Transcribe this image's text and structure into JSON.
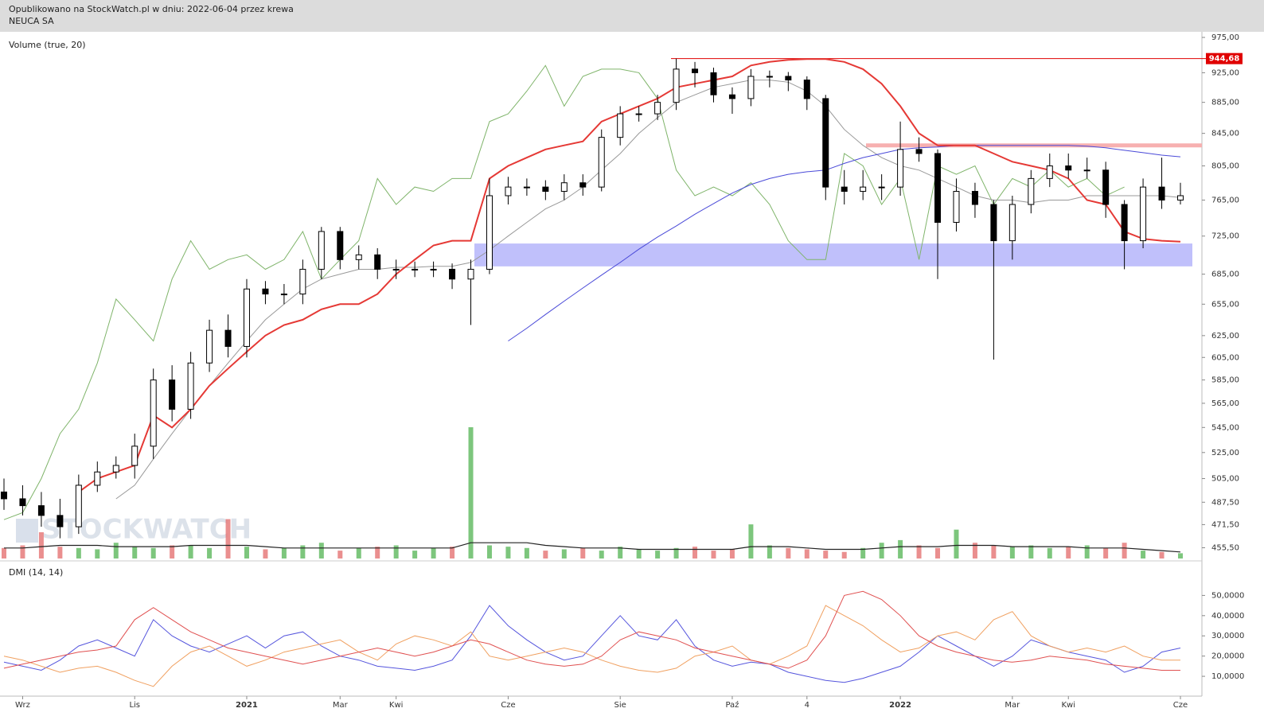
{
  "chart_data": {
    "type": "candlestick",
    "subtitle": "Opublikowano na StockWatch.pl w dniu: 2022-06-04 przez krewa",
    "title": "NEUCA SA",
    "volume_label": "Volume (true, 20)",
    "dmi_label": "DMI (14, 14)",
    "watermark": "STOCKWATCH",
    "log_scale": true,
    "categories": [
      null,
      "Wrz",
      null,
      null,
      null,
      null,
      null,
      "Lis",
      null,
      null,
      null,
      null,
      null,
      "2021",
      null,
      null,
      null,
      null,
      "Mar",
      null,
      null,
      "Kwi",
      null,
      null,
      null,
      null,
      null,
      "Cze",
      null,
      null,
      null,
      null,
      null,
      "Sie",
      null,
      null,
      null,
      null,
      null,
      "Paź",
      null,
      null,
      null,
      "4",
      null,
      null,
      null,
      null,
      "2022",
      null,
      null,
      null,
      null,
      null,
      "Mar",
      null,
      null,
      "Kwi",
      null,
      null,
      null,
      null,
      null,
      "Cze"
    ],
    "open": [
      495,
      490,
      485,
      478,
      470,
      500,
      510,
      515,
      530,
      585,
      560,
      600,
      630,
      615,
      670,
      665,
      665,
      690,
      730,
      700,
      705,
      690,
      690,
      690,
      690,
      680,
      690,
      770,
      780,
      780,
      775,
      785,
      780,
      840,
      870,
      870,
      885,
      930,
      925,
      895,
      890,
      920,
      920,
      915,
      890,
      780,
      775,
      780,
      780,
      825,
      820,
      740,
      775,
      760,
      720,
      760,
      790,
      805,
      800,
      800,
      760,
      720,
      780,
      765
    ],
    "high": [
      505,
      500,
      495,
      490,
      508,
      518,
      522,
      540,
      595,
      598,
      610,
      640,
      645,
      680,
      678,
      675,
      700,
      735,
      735,
      715,
      712,
      700,
      698,
      698,
      696,
      700,
      790,
      792,
      790,
      788,
      795,
      795,
      850,
      880,
      880,
      895,
      944.68,
      940,
      932,
      905,
      930,
      928,
      926,
      920,
      895,
      800,
      800,
      795,
      860,
      840,
      825,
      790,
      785,
      765,
      770,
      800,
      820,
      820,
      815,
      810,
      765,
      790,
      815,
      785
    ],
    "low": [
      482,
      478,
      470,
      462,
      465,
      495,
      505,
      505,
      520,
      550,
      552,
      592,
      605,
      605,
      655,
      655,
      655,
      680,
      690,
      690,
      680,
      680,
      682,
      682,
      670,
      635,
      685,
      760,
      770,
      765,
      765,
      770,
      775,
      830,
      860,
      862,
      875,
      905,
      885,
      870,
      880,
      905,
      900,
      875,
      765,
      760,
      765,
      765,
      770,
      810,
      680,
      730,
      745,
      603,
      700,
      750,
      780,
      790,
      790,
      745,
      690,
      712,
      755,
      760
    ],
    "close": [
      490,
      485,
      478,
      470,
      500,
      510,
      515,
      530,
      585,
      560,
      600,
      630,
      615,
      670,
      665,
      665,
      690,
      730,
      700,
      705,
      690,
      690,
      690,
      690,
      680,
      690,
      770,
      780,
      780,
      775,
      785,
      780,
      840,
      870,
      870,
      885,
      930,
      925,
      895,
      890,
      920,
      920,
      915,
      890,
      780,
      775,
      780,
      780,
      825,
      820,
      740,
      775,
      760,
      720,
      760,
      790,
      805,
      800,
      800,
      760,
      720,
      780,
      765,
      770
    ],
    "ylim": [
      452,
      982
    ],
    "yticks": [
      {
        "value": 975,
        "label": "975,00"
      },
      {
        "value": 925,
        "label": "925,00"
      },
      {
        "value": 885,
        "label": "885,00"
      },
      {
        "value": 845,
        "label": "845,00"
      },
      {
        "value": 805,
        "label": "805,00"
      },
      {
        "value": 765,
        "label": "765,00"
      },
      {
        "value": 725,
        "label": "725,00"
      },
      {
        "value": 685,
        "label": "685,00"
      },
      {
        "value": 655,
        "label": "655,00"
      },
      {
        "value": 625,
        "label": "625,00"
      },
      {
        "value": 605,
        "label": "605,00"
      },
      {
        "value": 585,
        "label": "585,00"
      },
      {
        "value": 565,
        "label": "565,00"
      },
      {
        "value": 545,
        "label": "545,00"
      },
      {
        "value": 525,
        "label": "525,00"
      },
      {
        "value": 505,
        "label": "505,00"
      },
      {
        "value": 487.5,
        "label": "487,50"
      },
      {
        "value": 471.5,
        "label": "471,50"
      },
      {
        "value": 455.5,
        "label": "455,50"
      }
    ],
    "overlays": [
      {
        "color": "#7fb46a",
        "values": [
          475,
          480,
          505,
          540,
          560,
          600,
          660,
          640,
          620,
          680,
          720,
          690,
          700,
          705,
          690,
          700,
          730,
          680,
          700,
          720,
          790,
          760,
          780,
          775,
          790,
          790,
          860,
          870,
          900,
          935,
          880,
          920,
          930,
          930,
          925,
          890,
          800,
          770,
          780,
          770,
          785,
          760,
          720,
          700,
          700,
          820,
          805,
          760,
          790,
          700,
          805,
          795,
          805,
          760,
          790,
          780,
          800,
          780,
          790,
          770,
          780,
          null,
          null,
          null
        ]
      },
      {
        "color": "#999999",
        "values": [
          null,
          null,
          null,
          null,
          null,
          null,
          490,
          500,
          520,
          540,
          560,
          580,
          600,
          620,
          640,
          655,
          670,
          680,
          685,
          690,
          690,
          692,
          692,
          693,
          693,
          697,
          710,
          725,
          740,
          755,
          765,
          780,
          800,
          820,
          845,
          865,
          885,
          895,
          905,
          910,
          915,
          915,
          912,
          900,
          880,
          850,
          830,
          815,
          805,
          800,
          790,
          780,
          770,
          765,
          765,
          762,
          765,
          765,
          770,
          770,
          770,
          770,
          770,
          768
        ]
      },
      {
        "color": "#4a4ad8",
        "values": [
          null,
          null,
          null,
          null,
          null,
          null,
          null,
          null,
          null,
          null,
          null,
          null,
          null,
          null,
          null,
          null,
          null,
          null,
          null,
          null,
          null,
          null,
          null,
          null,
          null,
          null,
          null,
          620,
          632,
          645,
          658,
          671,
          684,
          697,
          711,
          724,
          736,
          749,
          761,
          773,
          783,
          790,
          795,
          798,
          800,
          808,
          815,
          820,
          825,
          827,
          828,
          830,
          830,
          830,
          830,
          830,
          830,
          830,
          829,
          827,
          824,
          821,
          818,
          816
        ]
      },
      {
        "color": "#e53935",
        "values": [
          null,
          null,
          null,
          null,
          495,
          505,
          510,
          515,
          555,
          545,
          560,
          580,
          595,
          610,
          625,
          635,
          640,
          650,
          655,
          655,
          665,
          685,
          700,
          715,
          720,
          720,
          790,
          805,
          815,
          825,
          830,
          835,
          860,
          870,
          880,
          890,
          905,
          910,
          915,
          920,
          935,
          940,
          943,
          944,
          944,
          940,
          930,
          910,
          880,
          845,
          830,
          830,
          830,
          820,
          810,
          805,
          800,
          790,
          765,
          760,
          730,
          722,
          720,
          719
        ]
      }
    ],
    "resistance": {
      "value": 944.68,
      "label": "944,68",
      "color": "#e00000"
    },
    "pink_level": {
      "value": 830,
      "color": "#f7b0b0"
    },
    "band": {
      "low": 693,
      "high": 717,
      "color": "#b9b9fb"
    },
    "volume": {
      "color_up": "#5cb85c",
      "color_down": "#e57373",
      "ma_color": "#222222",
      "vlim": [
        0,
        100
      ],
      "values": [
        8,
        10,
        20,
        9,
        8,
        7,
        12,
        9,
        8,
        10,
        10,
        8,
        30,
        9,
        7,
        8,
        10,
        12,
        6,
        8,
        9,
        10,
        6,
        8,
        9,
        100,
        10,
        9,
        8,
        6,
        7,
        8,
        6,
        9,
        7,
        6,
        8,
        9,
        6,
        7,
        26,
        10,
        8,
        7,
        6,
        5,
        8,
        12,
        14,
        10,
        8,
        22,
        12,
        10,
        9,
        10,
        8,
        9,
        10,
        8,
        12,
        6,
        5,
        4
      ],
      "ma": [
        8,
        8,
        9,
        10,
        10,
        10,
        9,
        9,
        9,
        9,
        10,
        10,
        10,
        10,
        9,
        8,
        8,
        8,
        8,
        8,
        8,
        8,
        8,
        8,
        8,
        12,
        12,
        12,
        12,
        10,
        9,
        8,
        8,
        8,
        7,
        7,
        7,
        7,
        7,
        7,
        9,
        9,
        9,
        8,
        7,
        7,
        7,
        8,
        9,
        9,
        9,
        10,
        10,
        10,
        9,
        9,
        9,
        9,
        8,
        8,
        8,
        7,
        6,
        5
      ]
    },
    "dmi": {
      "ylim": [
        0,
        62
      ],
      "yticks": [
        {
          "value": 50,
          "label": "50,0000"
        },
        {
          "value": 40,
          "label": "40,0000"
        },
        {
          "value": 30,
          "label": "30,0000"
        },
        {
          "value": 20,
          "label": "20,0000"
        },
        {
          "value": 10,
          "label": "10,0000"
        }
      ],
      "series": [
        {
          "color": "#5555dd",
          "values": [
            17,
            15,
            13,
            18,
            25,
            28,
            24,
            20,
            38,
            30,
            25,
            22,
            26,
            30,
            24,
            30,
            32,
            25,
            20,
            18,
            15,
            14,
            13,
            15,
            18,
            30,
            45,
            35,
            28,
            22,
            18,
            20,
            30,
            40,
            30,
            28,
            38,
            25,
            18,
            15,
            17,
            16,
            12,
            10,
            8,
            7,
            9,
            12,
            15,
            22,
            30,
            25,
            20,
            15,
            20,
            28,
            25,
            22,
            20,
            18,
            12,
            15,
            22,
            24
          ]
        },
        {
          "color": "#f0a060",
          "values": [
            20,
            18,
            15,
            12,
            14,
            15,
            12,
            8,
            5,
            15,
            22,
            25,
            20,
            15,
            18,
            22,
            24,
            26,
            28,
            22,
            18,
            26,
            30,
            28,
            25,
            32,
            20,
            18,
            20,
            22,
            24,
            22,
            18,
            15,
            13,
            12,
            14,
            20,
            22,
            25,
            18,
            16,
            20,
            25,
            45,
            40,
            35,
            28,
            22,
            24,
            30,
            32,
            28,
            38,
            42,
            30,
            25,
            22,
            24,
            22,
            25,
            20,
            18,
            18
          ]
        },
        {
          "color": "#e05050",
          "values": [
            14,
            16,
            18,
            20,
            22,
            23,
            25,
            38,
            44,
            38,
            32,
            28,
            24,
            22,
            20,
            18,
            16,
            18,
            20,
            22,
            24,
            22,
            20,
            22,
            25,
            28,
            26,
            22,
            18,
            16,
            15,
            16,
            20,
            28,
            32,
            30,
            28,
            24,
            22,
            20,
            18,
            16,
            14,
            18,
            30,
            50,
            52,
            48,
            40,
            30,
            25,
            22,
            20,
            18,
            17,
            18,
            20,
            19,
            18,
            16,
            15,
            14,
            13,
            13
          ]
        }
      ]
    }
  }
}
